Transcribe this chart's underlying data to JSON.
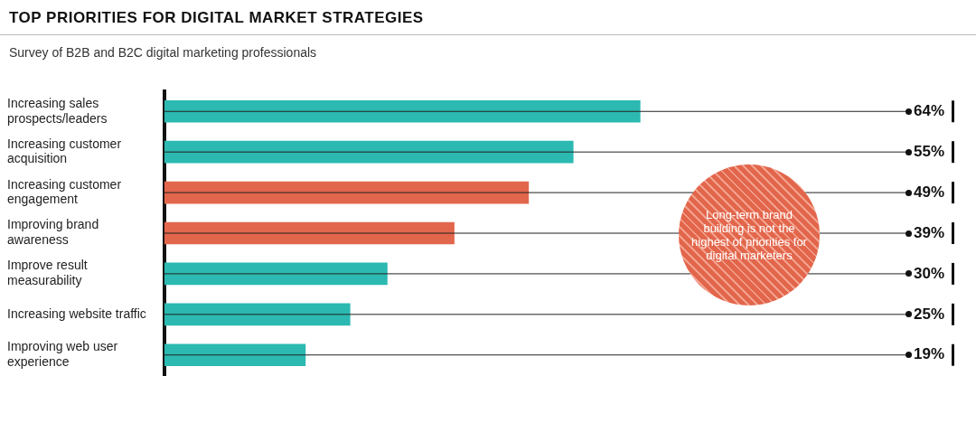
{
  "chart_data": {
    "type": "bar",
    "orientation": "horizontal",
    "title": "TOP PRIORITIES FOR DIGITAL MARKET STRATEGIES",
    "subtitle": "Survey of B2B and B2C digital marketing professionals",
    "categories": [
      "Increasing sales prospects/leaders",
      "Increasing customer acquisition",
      "Increasing customer engagement",
      "Improving brand awareness",
      "Improve result measurability",
      "Increasing website traffic",
      "Improving web user experience"
    ],
    "values": [
      64,
      55,
      49,
      39,
      30,
      25,
      19
    ],
    "colors": [
      "#2bb9b1",
      "#2bb9b1",
      "#e2664b",
      "#e2664b",
      "#2bb9b1",
      "#2bb9b1",
      "#2bb9b1"
    ],
    "value_labels": [
      "64%",
      "55%",
      "49%",
      "39%",
      "30%",
      "25%",
      "19%"
    ],
    "xlim": [
      0,
      100
    ],
    "tick_labels": "y",
    "annotations": [
      "Long-term brand building is not the highest of priorities for digital marketers"
    ]
  }
}
